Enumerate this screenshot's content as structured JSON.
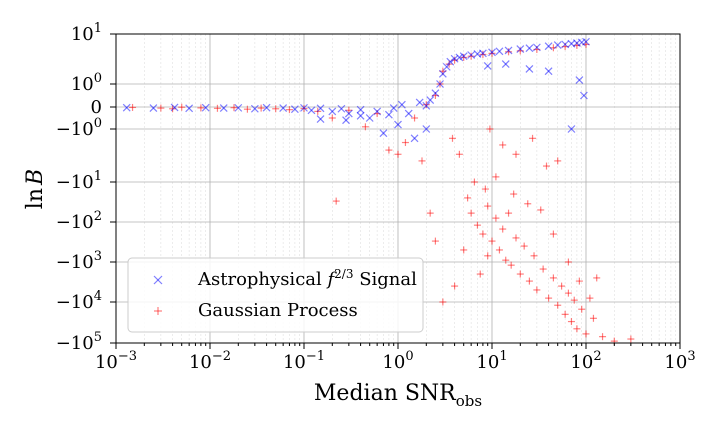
{
  "chart_data": {
    "type": "scatter",
    "xlabel": "Median SNR",
    "xlabel_sub": "obs",
    "ylabel": "ln",
    "ylabel_symbol": "B",
    "x_scale": "log",
    "y_scale": "symlog",
    "xlim": [
      0.001,
      1000
    ],
    "ylim": [
      -100000,
      10
    ],
    "grid": true,
    "legend_position": "lower-left",
    "x_ticks": [
      {
        "base": "10",
        "exp": "−3"
      },
      {
        "base": "10",
        "exp": "−2"
      },
      {
        "base": "10",
        "exp": "−1"
      },
      {
        "base": "10",
        "exp": "0"
      },
      {
        "base": "10",
        "exp": "1"
      },
      {
        "base": "10",
        "exp": "2"
      },
      {
        "base": "10",
        "exp": "3"
      }
    ],
    "y_ticks": [
      {
        "pre": "",
        "base": "10",
        "exp": "1"
      },
      {
        "pre": "",
        "base": "10",
        "exp": "0"
      },
      {
        "pre": "",
        "base": "0",
        "exp": ""
      },
      {
        "pre": "−",
        "base": "10",
        "exp": "0"
      },
      {
        "pre": "−",
        "base": "10",
        "exp": "1"
      },
      {
        "pre": "−",
        "base": "10",
        "exp": "2"
      },
      {
        "pre": "−",
        "base": "10",
        "exp": "3"
      },
      {
        "pre": "−",
        "base": "10",
        "exp": "4"
      },
      {
        "pre": "−",
        "base": "10",
        "exp": "5"
      }
    ],
    "series": [
      {
        "name": "Astrophysical f^{2/3} Signal",
        "name_parts": {
          "prefix": "Astrophysical ",
          "italic": "f",
          "sup": "2/3",
          "suffix": " Signal"
        },
        "marker": "x",
        "color": "#0000ff",
        "points": [
          [
            0.0013,
            -0.03
          ],
          [
            0.0025,
            -0.05
          ],
          [
            0.0042,
            -0.02
          ],
          [
            0.006,
            -0.06
          ],
          [
            0.009,
            -0.03
          ],
          [
            0.014,
            -0.05
          ],
          [
            0.02,
            -0.04
          ],
          [
            0.03,
            -0.08
          ],
          [
            0.04,
            -0.03
          ],
          [
            0.06,
            -0.05
          ],
          [
            0.08,
            -0.1
          ],
          [
            0.1,
            -0.04
          ],
          [
            0.12,
            -0.15
          ],
          [
            0.15,
            -0.06
          ],
          [
            0.2,
            -0.2
          ],
          [
            0.25,
            -0.08
          ],
          [
            0.28,
            -0.6
          ],
          [
            0.3,
            -0.3
          ],
          [
            0.4,
            -0.12
          ],
          [
            0.5,
            -0.5
          ],
          [
            0.6,
            -0.2
          ],
          [
            0.7,
            -1.2
          ],
          [
            0.8,
            -0.35
          ],
          [
            0.9,
            -0.05
          ],
          [
            1.0,
            -0.8
          ],
          [
            1.1,
            0.1
          ],
          [
            1.3,
            -0.3
          ],
          [
            1.5,
            -1.5
          ],
          [
            1.7,
            0.2
          ],
          [
            2.0,
            0.05
          ],
          [
            2.2,
            0.3
          ],
          [
            2.5,
            0.6
          ],
          [
            2.8,
            1.0
          ],
          [
            3.0,
            1.6
          ],
          [
            3.3,
            2.2
          ],
          [
            3.6,
            2.8
          ],
          [
            4.0,
            3.2
          ],
          [
            4.5,
            3.4
          ],
          [
            5.0,
            3.6
          ],
          [
            6.0,
            3.8
          ],
          [
            7.0,
            4.0
          ],
          [
            8.0,
            4.1
          ],
          [
            10.0,
            4.3
          ],
          [
            12.0,
            4.5
          ],
          [
            15.0,
            4.7
          ],
          [
            20.0,
            5.0
          ],
          [
            25.0,
            5.2
          ],
          [
            30.0,
            5.4
          ],
          [
            40.0,
            5.7
          ],
          [
            50.0,
            6.0
          ],
          [
            60.0,
            6.2
          ],
          [
            70.0,
            6.4
          ],
          [
            80.0,
            6.6
          ],
          [
            90.0,
            6.8
          ],
          [
            100.0,
            7.0
          ],
          [
            85.0,
            1.2
          ],
          [
            95.0,
            0.5
          ],
          [
            70.0,
            -1.0
          ],
          [
            40.0,
            1.8
          ],
          [
            25.0,
            2.0
          ],
          [
            14.0,
            2.5
          ],
          [
            9.0,
            2.3
          ],
          [
            0.15,
            -0.55
          ],
          [
            0.4,
            -0.4
          ],
          [
            2.0,
            -1.0
          ]
        ]
      },
      {
        "name": "Gaussian Process",
        "marker": "+",
        "color": "#ff0000",
        "points": [
          [
            0.0015,
            -0.02
          ],
          [
            0.003,
            -0.05
          ],
          [
            0.004,
            -0.08
          ],
          [
            0.005,
            -0.01
          ],
          [
            0.008,
            -0.04
          ],
          [
            0.012,
            -0.06
          ],
          [
            0.018,
            -0.03
          ],
          [
            0.025,
            -0.1
          ],
          [
            0.035,
            -0.05
          ],
          [
            0.05,
            -0.08
          ],
          [
            0.07,
            -0.12
          ],
          [
            0.1,
            -0.07
          ],
          [
            0.14,
            -0.2
          ],
          [
            0.2,
            -0.5
          ],
          [
            0.22,
            -30
          ],
          [
            0.3,
            -0.15
          ],
          [
            0.45,
            -0.9
          ],
          [
            0.6,
            -0.3
          ],
          [
            0.8,
            -2.5
          ],
          [
            1.0,
            -3.0
          ],
          [
            1.2,
            -1.8
          ],
          [
            1.5,
            -0.5
          ],
          [
            1.8,
            -4.0
          ],
          [
            2.0,
            0.1
          ],
          [
            2.5,
            0.5
          ],
          [
            2.8,
            1.0
          ],
          [
            3.0,
            1.8
          ],
          [
            3.5,
            2.5
          ],
          [
            4.0,
            3.0
          ],
          [
            5.0,
            3.4
          ],
          [
            6.0,
            3.6
          ],
          [
            8.0,
            3.9
          ],
          [
            10.0,
            4.1
          ],
          [
            15.0,
            4.4
          ],
          [
            20.0,
            4.6
          ],
          [
            30.0,
            4.9
          ],
          [
            45.0,
            5.3
          ],
          [
            60.0,
            5.6
          ],
          [
            80.0,
            5.9
          ],
          [
            100.0,
            6.2
          ],
          [
            5.5,
            -25
          ],
          [
            6.0,
            -60
          ],
          [
            7.0,
            -120
          ],
          [
            8.0,
            -200
          ],
          [
            9.0,
            -40
          ],
          [
            10.0,
            -300
          ],
          [
            11.0,
            -80
          ],
          [
            12.0,
            -500
          ],
          [
            13.0,
            -150
          ],
          [
            14.0,
            -900
          ],
          [
            15.0,
            -60
          ],
          [
            16.0,
            -1200
          ],
          [
            18.0,
            -250
          ],
          [
            20.0,
            -2000
          ],
          [
            22.0,
            -400
          ],
          [
            25.0,
            -3000
          ],
          [
            28.0,
            -700
          ],
          [
            30.0,
            -5000
          ],
          [
            35.0,
            -1500
          ],
          [
            40.0,
            -8000
          ],
          [
            45.0,
            -2500
          ],
          [
            50.0,
            -12000
          ],
          [
            55.0,
            -4000
          ],
          [
            60.0,
            -20000
          ],
          [
            65.0,
            -6000
          ],
          [
            70.0,
            -30000
          ],
          [
            75.0,
            -9000
          ],
          [
            80.0,
            -45000
          ],
          [
            90.0,
            -15000
          ],
          [
            100.0,
            -60000
          ],
          [
            120.0,
            -25000
          ],
          [
            150.0,
            -70000
          ],
          [
            200.0,
            -90000
          ],
          [
            300.0,
            -80000
          ],
          [
            6.5,
            -10
          ],
          [
            8.5,
            -15
          ],
          [
            11.0,
            -8
          ],
          [
            17.0,
            -20
          ],
          [
            24.0,
            -35
          ],
          [
            33.0,
            -50
          ],
          [
            4.5,
            -3.0
          ],
          [
            3.8,
            -1.5
          ],
          [
            9.5,
            -1.0
          ],
          [
            13.0,
            -2.0
          ],
          [
            18.0,
            -3.0
          ],
          [
            27.0,
            -1.5
          ],
          [
            38.0,
            -5.0
          ],
          [
            50.0,
            -4.0
          ],
          [
            5.0,
            -500
          ],
          [
            4.0,
            -4000
          ],
          [
            3.0,
            -10000
          ],
          [
            2.5,
            -300
          ],
          [
            2.2,
            -60
          ],
          [
            7.5,
            -2000
          ],
          [
            9.0,
            -700
          ],
          [
            45.0,
            -200
          ],
          [
            65.0,
            -1000
          ],
          [
            85.0,
            -3000
          ],
          [
            110.0,
            -8000
          ],
          [
            130.0,
            -2500
          ]
        ]
      }
    ]
  }
}
